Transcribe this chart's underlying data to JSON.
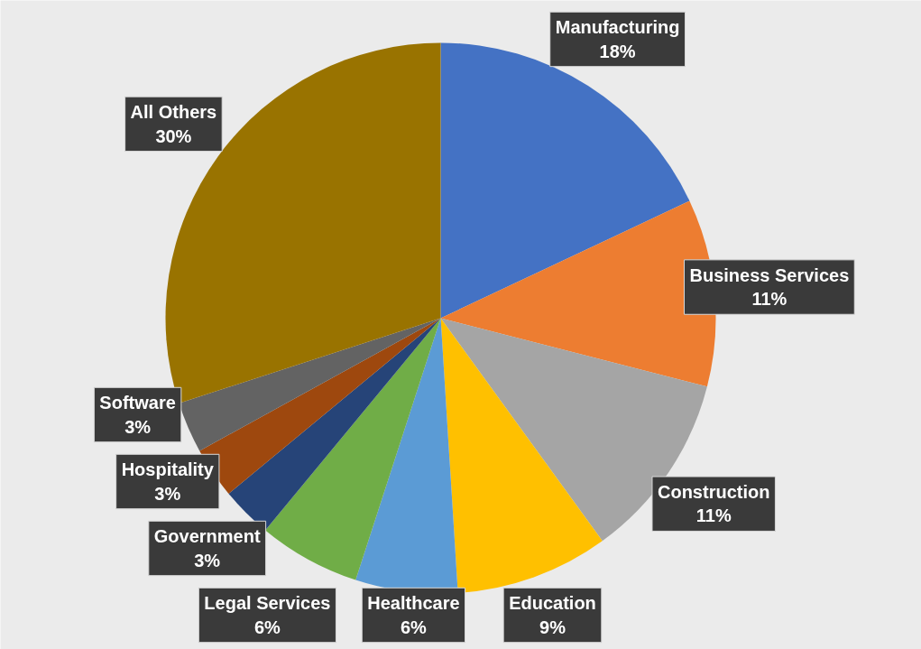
{
  "chart_data": {
    "type": "pie",
    "categories": [
      "Manufacturing",
      "Business Services",
      "Construction",
      "Education",
      "Healthcare",
      "Legal Services",
      "Government",
      "Hospitality",
      "Software",
      "All Others"
    ],
    "values": [
      18,
      11,
      11,
      9,
      6,
      6,
      3,
      3,
      3,
      30
    ],
    "colors": [
      "#4472c4",
      "#ed7d31",
      "#a5a5a5",
      "#ffc000",
      "#5b9bd5",
      "#70ad47",
      "#264478",
      "#9e480e",
      "#636363",
      "#997300"
    ],
    "value_labels": [
      "18%",
      "11%",
      "11%",
      "9%",
      "6%",
      "6%",
      "3%",
      "3%",
      "3%",
      "30%"
    ]
  }
}
